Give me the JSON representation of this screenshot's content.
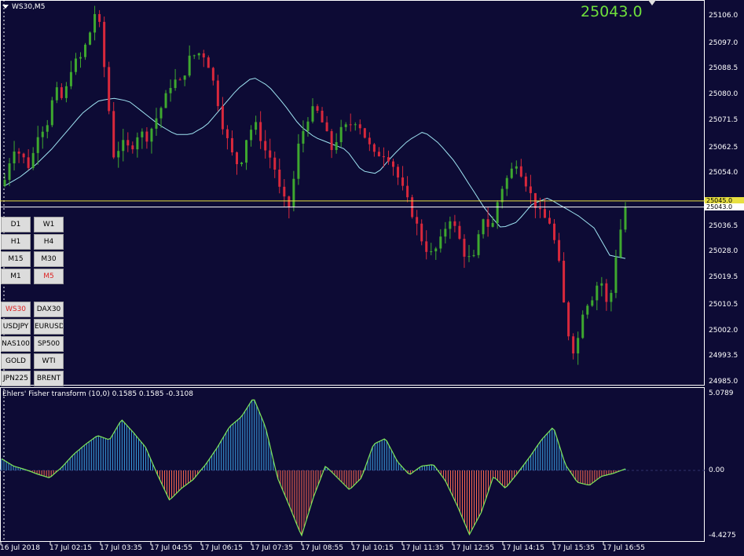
{
  "window": {
    "symbol_label": "WS30,M5",
    "current_price_big": "25043.0"
  },
  "price_axis": {
    "labels": [
      "25106.0",
      "25097.0",
      "25088.5",
      "25080.0",
      "25071.5",
      "25062.5",
      "25054.0",
      "25036.5",
      "25028.0",
      "25019.5",
      "25010.5",
      "25002.0",
      "24993.5",
      "24985.0"
    ],
    "tag_yellow": "25045.0",
    "tag_white": "25043.0"
  },
  "indicator": {
    "title": "Ehlers' Fisher transform (10,0) 0.1585 0.1585 -0.3108",
    "axis_labels": [
      "5.0789",
      "0.00",
      "-4.4275"
    ]
  },
  "time_axis": [
    "16 Jul 2018",
    "17 Jul 02:15",
    "17 Jul 03:35",
    "17 Jul 04:55",
    "17 Jul 06:15",
    "17 Jul 07:35",
    "17 Jul 08:55",
    "17 Jul 10:15",
    "17 Jul 11:35",
    "17 Jul 12:55",
    "17 Jul 14:15",
    "17 Jul 15:35",
    "17 Jul 16:55"
  ],
  "timeframe_buttons": [
    {
      "label": "D1",
      "active": false
    },
    {
      "label": "W1",
      "active": false
    },
    {
      "label": "H1",
      "active": false
    },
    {
      "label": "H4",
      "active": false
    },
    {
      "label": "M15",
      "active": false
    },
    {
      "label": "M30",
      "active": false
    },
    {
      "label": "M1",
      "active": false
    },
    {
      "label": "M5",
      "active": true
    }
  ],
  "symbol_buttons": [
    {
      "label": "WS30",
      "active": true
    },
    {
      "label": "DAX30",
      "active": false
    },
    {
      "label": "USDJPY",
      "active": false
    },
    {
      "label": "EURUSD",
      "active": false
    },
    {
      "label": "NAS100",
      "active": false
    },
    {
      "label": "SP500",
      "active": false
    },
    {
      "label": "GOLD",
      "active": false
    },
    {
      "label": "WTI",
      "active": false
    },
    {
      "label": "JPN225",
      "active": false
    },
    {
      "label": "BRENT",
      "active": false
    }
  ],
  "colors": {
    "background": "#0d0b35",
    "bull_candle": "#3ea82f",
    "bear_candle": "#d8283c",
    "moving_average": "#9fe4f2",
    "fisher_positive": "#3aa0e0",
    "fisher_negative": "#ff6a50",
    "fisher_line": "#7fe85a",
    "price_line_yellow": "#e8e040"
  },
  "chart_data": {
    "type": "candlestick",
    "instrument": "WS30",
    "timeframe": "M5",
    "ylim": [
      24985.0,
      25106.0
    ],
    "close_path": [
      25052,
      25063,
      25060,
      25056,
      25068,
      25070,
      25082,
      25078,
      25090,
      25092,
      25099,
      25110,
      25086,
      25060,
      25064,
      25062,
      25068,
      25066,
      25072,
      25078,
      25085,
      25084,
      25092,
      25094,
      25093,
      25083,
      25070,
      25061,
      25056,
      25068,
      25070,
      25062,
      25058,
      25046,
      25043,
      25063,
      25072,
      25076,
      25070,
      25062,
      25068,
      25070,
      25072,
      25066,
      25060,
      25061,
      25059,
      25052,
      25045,
      25038,
      25030,
      25027,
      25032,
      25040,
      25034,
      25026,
      25026,
      25040,
      25035,
      25048,
      25053,
      25058,
      25052,
      25045,
      25040,
      25038,
      25026,
      25003,
      24994,
      25010,
      25013,
      25020,
      25008,
      25030,
      25043
    ],
    "moving_average_path": [
      25050,
      25053,
      25057,
      25062,
      25068,
      25074,
      25078,
      25079,
      25078,
      25074,
      25070,
      25067,
      25067,
      25070,
      25076,
      25082,
      25086,
      25083,
      25077,
      25070,
      25066,
      25064,
      25062,
      25055,
      25054,
      25060,
      25065,
      25068,
      25064,
      25058,
      25050,
      25042,
      25036,
      25038,
      25044,
      25046,
      25043,
      25040,
      25036,
      25027,
      25026
    ],
    "fisher_transform_path": [
      0.8,
      0.3,
      0.05,
      -0.25,
      -0.5,
      0.2,
      1.1,
      1.8,
      2.4,
      2.1,
      3.5,
      2.6,
      1.6,
      -0.3,
      -2.0,
      -1.2,
      -0.6,
      0.4,
      1.6,
      3.0,
      3.7,
      5.0,
      3.0,
      -0.5,
      -2.4,
      -4.4,
      -1.8,
      0.3,
      -0.5,
      -1.3,
      -0.5,
      1.8,
      2.2,
      0.6,
      -0.3,
      0.3,
      0.4,
      -0.7,
      -2.4,
      -4.3,
      -2.8,
      -0.4,
      -1.2,
      -0.2,
      0.9,
      2.1,
      3.0,
      0.4,
      -0.8,
      -1.0,
      -0.4,
      -0.2,
      0.1
    ]
  }
}
